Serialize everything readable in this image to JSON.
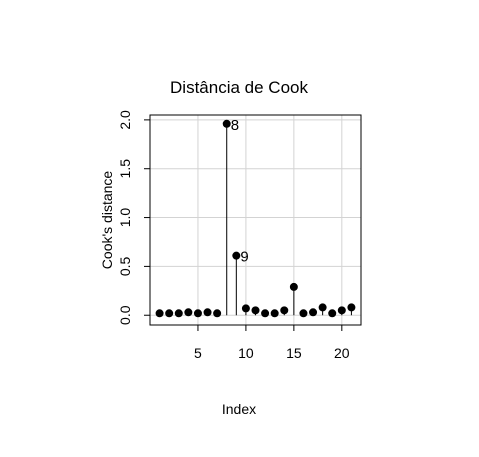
{
  "chart_data": {
    "type": "scatter",
    "title": "Distância de Cook",
    "xlabel": "Index",
    "ylabel": "Cook's distance",
    "x": [
      1,
      2,
      3,
      4,
      5,
      6,
      7,
      8,
      9,
      10,
      11,
      12,
      13,
      14,
      15,
      16,
      17,
      18,
      19,
      20,
      21
    ],
    "values": [
      0.02,
      0.02,
      0.02,
      0.03,
      0.02,
      0.03,
      0.02,
      1.96,
      0.61,
      0.07,
      0.05,
      0.02,
      0.02,
      0.05,
      0.29,
      0.02,
      0.03,
      0.08,
      0.02,
      0.05,
      0.08
    ],
    "point_labels": [
      {
        "index": 8,
        "label": "8"
      },
      {
        "index": 9,
        "label": "9"
      }
    ],
    "xlim": [
      0,
      22
    ],
    "ylim": [
      -0.1,
      2.05
    ],
    "xticks": [
      "5",
      "10",
      "15",
      "20"
    ],
    "yticks": [
      "0.0",
      "0.5",
      "1.0",
      "1.5",
      "2.0"
    ],
    "grid": true,
    "stems": true
  }
}
